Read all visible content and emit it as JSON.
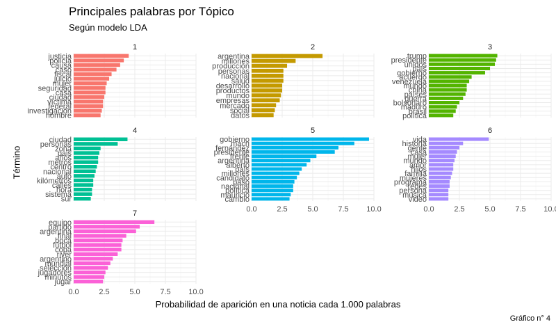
{
  "chart_data": {
    "type": "bar",
    "orientation": "horizontal",
    "facets": true,
    "title": "Principales palabras por Tópico",
    "subtitle": "Según modelo LDA",
    "xlabel": "Probabilidad de aparición en una noticia cada 1.000 palabras",
    "ylabel": "Término",
    "caption": "Gráfico n° 4",
    "xlim": [
      0,
      10
    ],
    "xticks": [
      "0.0",
      "2.5",
      "5.0",
      "7.5",
      "10.0"
    ],
    "grid": true,
    "panels": [
      {
        "name": "1",
        "color": "#F8766D",
        "terms": [
          "justicia",
          "policía",
          "causa",
          "caso",
          "fiscal",
          "juicio",
          "mujer",
          "seguridad",
          "casa",
          "ciudad",
          "víctima",
          "federal",
          "investigación",
          "hombre"
        ],
        "values": [
          4.5,
          4.1,
          3.8,
          3.5,
          3.1,
          2.9,
          2.7,
          2.6,
          2.6,
          2.5,
          2.4,
          2.4,
          2.3,
          2.2
        ]
      },
      {
        "name": "2",
        "color": "#C49A00",
        "terms": [
          "argentina",
          "millones",
          "producción",
          "personas",
          "nacional",
          "salud",
          "desarrollo",
          "productos",
          "mundo",
          "empresas",
          "mercado",
          "social",
          "datos"
        ],
        "values": [
          5.8,
          3.6,
          2.9,
          2.6,
          2.6,
          2.6,
          2.5,
          2.5,
          2.4,
          2.3,
          2.0,
          1.9,
          1.8
        ]
      },
      {
        "name": "3",
        "color": "#53B400",
        "terms": [
          "trump",
          "presidente",
          "unidos",
          "país",
          "gobierno",
          "acuerdo",
          "venezuela",
          "mundo",
          "china",
          "países",
          "guerra",
          "bolsonaro",
          "maduro",
          "brasil",
          "política"
        ],
        "values": [
          5.6,
          5.5,
          5.4,
          5.0,
          4.6,
          3.5,
          3.3,
          3.1,
          3.1,
          3.0,
          2.8,
          2.5,
          2.3,
          2.2,
          2.0
        ]
      },
      {
        "name": "4",
        "color": "#00C094",
        "terms": [
          "ciudad",
          "personas",
          "zona",
          "pais",
          "años",
          "metros",
          "centro",
          "nacional",
          "auto",
          "kilómetros",
          "calles",
          "hora",
          "sistema",
          "sur"
        ],
        "values": [
          4.4,
          3.6,
          2.2,
          2.1,
          2.0,
          2.0,
          1.9,
          1.8,
          1.7,
          1.6,
          1.6,
          1.5,
          1.5,
          1.4
        ]
      },
      {
        "name": "5",
        "color": "#00B6EB",
        "terms": [
          "gobierno",
          "macri",
          "fernández",
          "presidente",
          "frente",
          "argentina",
          "alberto",
          "país",
          "millones",
          "candidato",
          "paso",
          "nacional",
          "política",
          "mauricio",
          "cambio"
        ],
        "values": [
          9.6,
          8.4,
          7.1,
          6.8,
          5.3,
          4.8,
          4.5,
          4.1,
          3.9,
          3.7,
          3.5,
          3.4,
          3.4,
          3.2,
          3.1
        ]
      },
      {
        "name": "6",
        "color": "#A58AFF",
        "terms": [
          "vida",
          "historia",
          "gente",
          "casa",
          "mujer",
          "mundo",
          "amor",
          "hijos",
          "familia",
          "mujeres",
          "programa",
          "redes",
          "persona",
          "música",
          "video"
        ],
        "values": [
          4.9,
          2.8,
          2.5,
          2.3,
          2.2,
          2.1,
          2.0,
          2.0,
          1.9,
          1.8,
          1.7,
          1.7,
          1.6,
          1.6,
          1.6
        ]
      },
      {
        "name": "7",
        "color": "#FB61D7",
        "terms": [
          "equipo",
          "partido",
          "argentina",
          "final",
          "boca",
          "fútbol",
          "copa",
          "river",
          "argentino",
          "mundial",
          "selección",
          "jugadores",
          "minutos",
          "jugar"
        ],
        "values": [
          6.6,
          5.4,
          5.1,
          4.3,
          4.0,
          3.9,
          3.9,
          3.6,
          3.2,
          3.0,
          2.8,
          2.6,
          2.5,
          2.4
        ]
      }
    ]
  }
}
